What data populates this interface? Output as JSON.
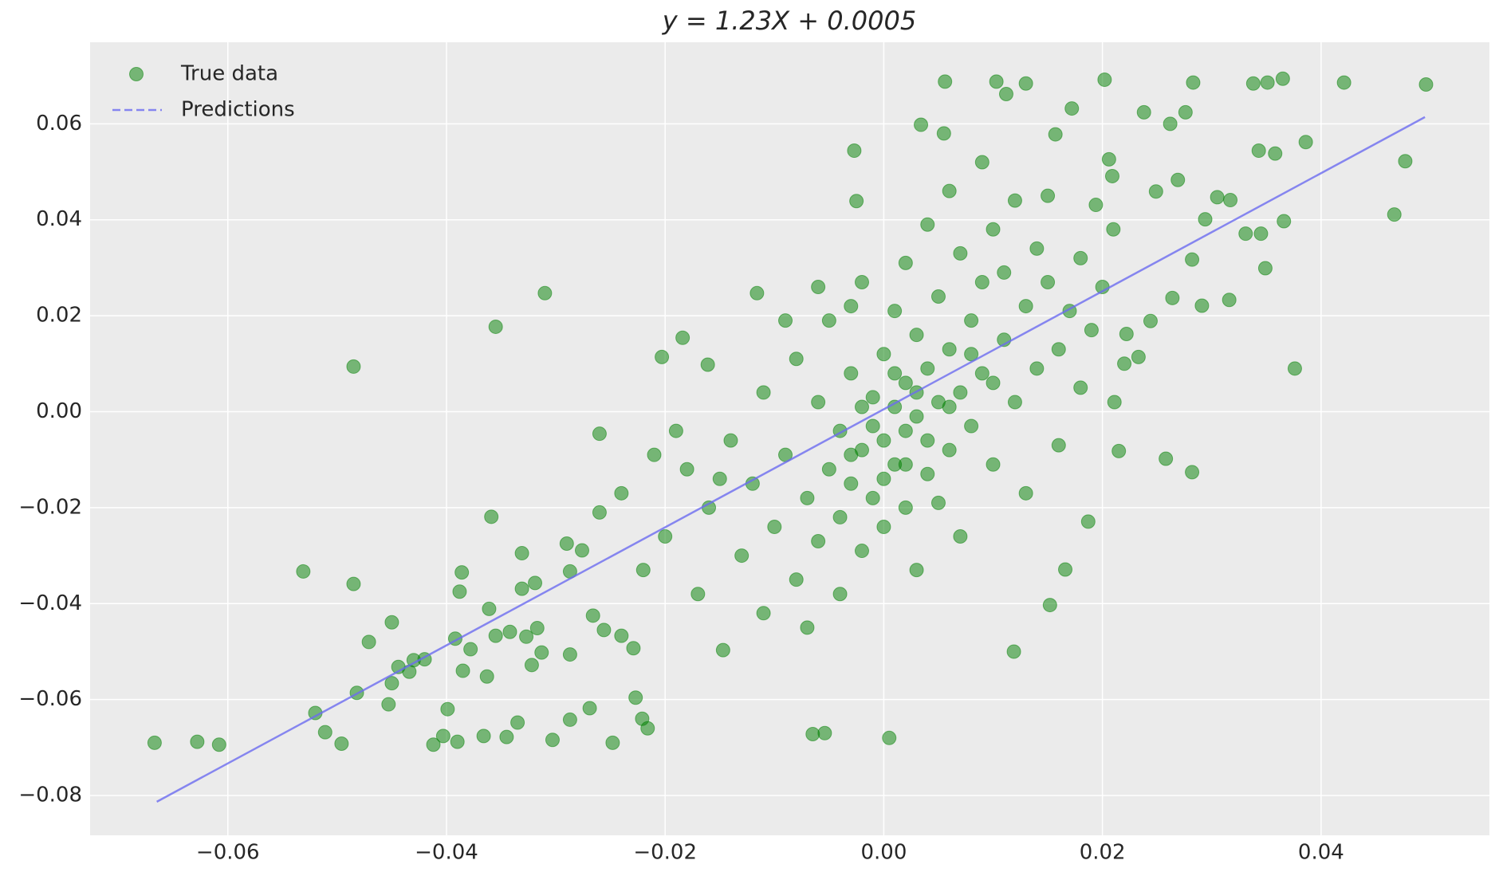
{
  "chart_data": {
    "type": "scatter",
    "title": "y = 1.23X + 0.0005",
    "grid": true,
    "legend": "upper left",
    "xlim": [
      -0.0726,
      0.0554
    ],
    "ylim": [
      -0.0883,
      0.077
    ],
    "xticks": [
      {
        "value": -0.06,
        "label": "−0.06"
      },
      {
        "value": -0.04,
        "label": "−0.04"
      },
      {
        "value": -0.02,
        "label": "−0.02"
      },
      {
        "value": 0,
        "label": "0.00"
      },
      0.02,
      0.04
    ],
    "yticks": [
      {
        "value": -0.08,
        "label": "−0.08"
      },
      {
        "value": -0.06,
        "label": "−0.06"
      },
      {
        "value": -0.04,
        "label": "−0.04"
      },
      {
        "value": -0.02,
        "label": "−0.02"
      },
      {
        "value": 0,
        "label": "0.00"
      },
      0.02,
      0.04,
      0.06
    ],
    "series": [
      {
        "name": "True data",
        "type": "scatter",
        "color": "#008000",
        "x": [
          -0.0667,
          -0.0628,
          -0.0608,
          -0.0531,
          -0.0485,
          -0.0485,
          -0.0496,
          -0.0511,
          -0.052,
          -0.0471,
          -0.0482,
          -0.045,
          -0.0453,
          -0.045,
          -0.0444,
          -0.0434,
          -0.043,
          -0.042,
          -0.0412,
          -0.0403,
          -0.0399,
          -0.0392,
          -0.039,
          -0.0388,
          -0.0386,
          -0.0385,
          -0.0378,
          -0.0363,
          -0.0366,
          -0.0361,
          -0.0359,
          -0.0355,
          -0.0355,
          -0.0345,
          -0.0342,
          -0.0335,
          -0.0331,
          -0.0331,
          -0.0327,
          -0.0322,
          -0.0319,
          -0.0317,
          -0.0313,
          -0.031,
          -0.0303,
          -0.029,
          -0.0287,
          -0.0287,
          -0.0287,
          -0.0276,
          -0.0269,
          -0.0266,
          -0.026,
          -0.0256,
          -0.0248,
          -0.024,
          -0.0229,
          -0.0227,
          -0.0221,
          -0.0216,
          -0.0203,
          -0.0184,
          -0.0161,
          -0.0147,
          -0.0116,
          -0.0065,
          -0.0054,
          0.0005,
          0.0056,
          0.0103,
          0.0112,
          0.013,
          0.0119,
          0.0152,
          0.0166,
          0.0187,
          0.0211,
          0.0215,
          0.0233,
          0.0258,
          0.0282,
          0.0202,
          0.0283,
          0.0338,
          0.0351,
          0.0365,
          0.0421,
          0.0496,
          0.0386,
          0.0343,
          0.0358,
          0.0477,
          0.0467,
          0.0376,
          0.0366,
          0.0345,
          0.0331,
          0.0349,
          0.0305,
          0.0317,
          0.0294,
          0.0316,
          0.0282,
          0.0291,
          0.0264,
          0.0244,
          0.0222,
          0.0249,
          0.0269,
          0.0262,
          0.0276,
          0.0238,
          0.0206,
          0.0209,
          0.0194,
          0.0172,
          0.0157,
          0.0055,
          0.0034,
          -0.0027,
          -0.0025,
          -0.018,
          -0.016,
          -0.014,
          -0.013,
          -0.012,
          -0.011,
          -0.01,
          -0.009,
          -0.008,
          -0.008,
          -0.007,
          -0.006,
          -0.006,
          -0.005,
          -0.005,
          -0.004,
          -0.004,
          -0.003,
          -0.003,
          -0.002,
          -0.002,
          -0.002,
          -0.001,
          -0.001,
          0,
          0,
          0,
          0.001,
          0.001,
          0.001,
          0.002,
          0.002,
          0.002,
          0.002,
          0.003,
          0.003,
          0.003,
          0.004,
          0.004,
          0.004,
          0.005,
          0.005,
          0.005,
          0.006,
          0.006,
          0.006,
          0.007,
          0.007,
          0.007,
          0.008,
          0.008,
          0.009,
          0.009,
          0.009,
          0.01,
          0.01,
          0.011,
          0.011,
          0.012,
          0.012,
          0.013,
          0.013,
          0.014,
          0.014,
          0.015,
          0.015,
          0.016,
          0.016,
          0.017,
          0.018,
          0.018,
          0.019,
          0.02,
          0.021,
          0.022,
          -0.02,
          -0.022,
          -0.019,
          -0.017,
          -0.015,
          -0.024,
          -0.026,
          -0.021,
          -0.011,
          -0.007,
          -0.004,
          -0.009,
          -0.006,
          -0.003,
          0,
          0.001,
          -0.001,
          0.003,
          0.004,
          0.006,
          -0.002,
          0.008,
          0.01,
          0.002,
          -0.003
        ],
        "values": [
          -0.069,
          -0.0688,
          -0.0694,
          -0.0333,
          0.0094,
          -0.0359,
          -0.0692,
          -0.0668,
          -0.0628,
          -0.048,
          -0.0586,
          -0.0439,
          -0.061,
          -0.0566,
          -0.0532,
          -0.0542,
          -0.0518,
          -0.0516,
          -0.0694,
          -0.0676,
          -0.062,
          -0.0473,
          -0.0688,
          -0.0375,
          -0.0335,
          -0.054,
          -0.0495,
          -0.0552,
          -0.0676,
          -0.0411,
          -0.0219,
          0.0177,
          -0.0467,
          -0.0678,
          -0.0459,
          -0.0648,
          -0.0295,
          -0.0369,
          -0.0469,
          -0.0528,
          -0.0357,
          -0.0451,
          -0.0502,
          0.0247,
          -0.0684,
          -0.0275,
          -0.0333,
          -0.0506,
          -0.0642,
          -0.0289,
          -0.0618,
          -0.0425,
          -0.0046,
          -0.0455,
          -0.069,
          -0.0467,
          -0.0493,
          -0.0596,
          -0.064,
          -0.066,
          0.0114,
          0.0154,
          0.0098,
          -0.0497,
          0.0247,
          -0.0672,
          -0.067,
          -0.068,
          0.0688,
          0.0688,
          0.0662,
          0.0684,
          -0.05,
          -0.0403,
          -0.0329,
          -0.0229,
          0.002,
          -0.0082,
          0.0114,
          -0.0098,
          -0.0126,
          0.0692,
          0.0686,
          0.0684,
          0.0686,
          0.0694,
          0.0686,
          0.0682,
          0.0562,
          0.0544,
          0.0538,
          0.0522,
          0.0411,
          0.009,
          0.0397,
          0.0371,
          0.0371,
          0.0299,
          0.0447,
          0.0441,
          0.0401,
          0.0233,
          0.0317,
          0.0221,
          0.0237,
          0.0189,
          0.0162,
          0.0459,
          0.0483,
          0.06,
          0.0624,
          0.0624,
          0.0526,
          0.0491,
          0.0431,
          0.0632,
          0.0578,
          0.058,
          0.0598,
          0.0544,
          0.0439,
          -0.012,
          -0.02,
          -0.006,
          -0.03,
          -0.015,
          0.004,
          -0.024,
          -0.009,
          0.011,
          -0.035,
          -0.018,
          0.002,
          -0.027,
          -0.012,
          0.019,
          -0.004,
          -0.022,
          0.008,
          -0.015,
          0.027,
          -0.008,
          -0.029,
          0.003,
          -0.018,
          0.012,
          -0.006,
          -0.024,
          0.021,
          0.001,
          -0.011,
          0.031,
          0.006,
          -0.004,
          -0.02,
          0.016,
          -0.001,
          -0.033,
          0.039,
          0.009,
          -0.013,
          0.024,
          0.002,
          -0.019,
          0.046,
          0.013,
          -0.008,
          0.033,
          0.004,
          -0.026,
          0.019,
          -0.003,
          0.052,
          0.027,
          0.008,
          0.038,
          -0.011,
          0.015,
          0.029,
          0.044,
          0.002,
          0.022,
          -0.017,
          0.034,
          0.009,
          0.027,
          0.045,
          0.013,
          -0.007,
          0.021,
          0.032,
          0.005,
          0.017,
          0.026,
          0.038,
          0.01,
          -0.026,
          -0.033,
          -0.004,
          -0.038,
          -0.014,
          -0.017,
          -0.021,
          -0.009,
          -0.042,
          -0.045,
          -0.038,
          0.019,
          0.026,
          0.022,
          -0.014,
          0.008,
          -0.003,
          0.004,
          -0.006,
          0.001,
          0.001,
          0.012,
          0.006,
          -0.011,
          -0.009
        ]
      },
      {
        "name": "Predictions",
        "type": "line",
        "color": "#6b6bf0",
        "x": [
          -0.0665,
          0.0495
        ],
        "values": [
          -0.0813,
          0.0614
        ]
      }
    ]
  }
}
